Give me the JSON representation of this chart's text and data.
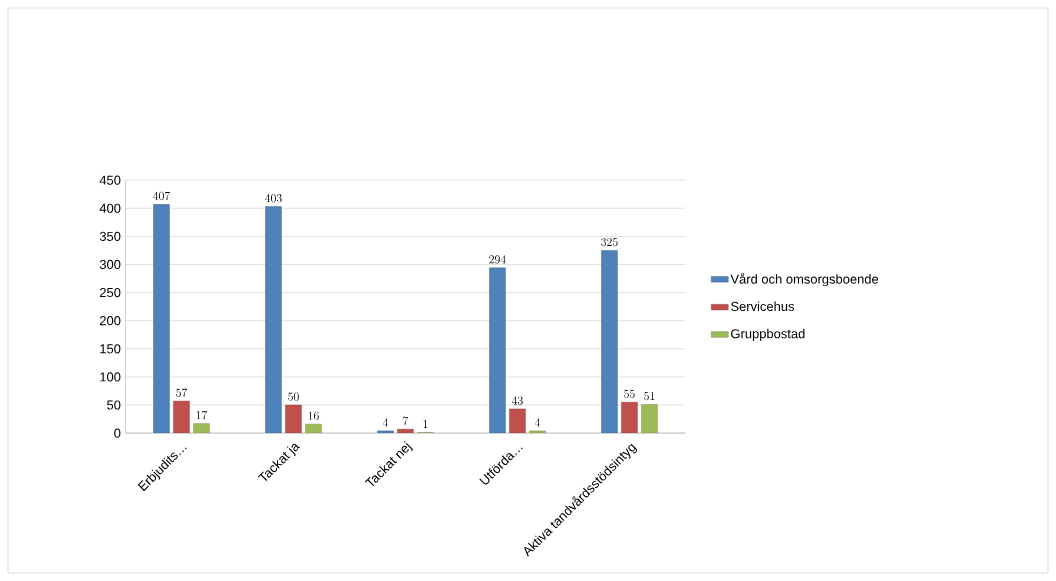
{
  "chart_data": {
    "type": "bar",
    "categories": [
      "Erbjudits…",
      "Tackat ja",
      "Tackat nej",
      "Utförda…",
      "Aktiva tandvårdsstödsintyg"
    ],
    "series": [
      {
        "name": "Vård och omsorgsboende",
        "color": "#4f81bd",
        "values": [
          407,
          403,
          4,
          294,
          325
        ]
      },
      {
        "name": "Servicehus",
        "color": "#c0504d",
        "values": [
          57,
          50,
          7,
          43,
          55
        ]
      },
      {
        "name": "Gruppbostad",
        "color": "#9bbb59",
        "values": [
          17,
          16,
          1,
          4,
          51
        ]
      }
    ],
    "ylim": [
      0,
      450
    ],
    "yticks": [
      0,
      50,
      100,
      150,
      200,
      250,
      300,
      350,
      400,
      450
    ],
    "grid": "y",
    "legend": "right",
    "data_labels": true
  }
}
